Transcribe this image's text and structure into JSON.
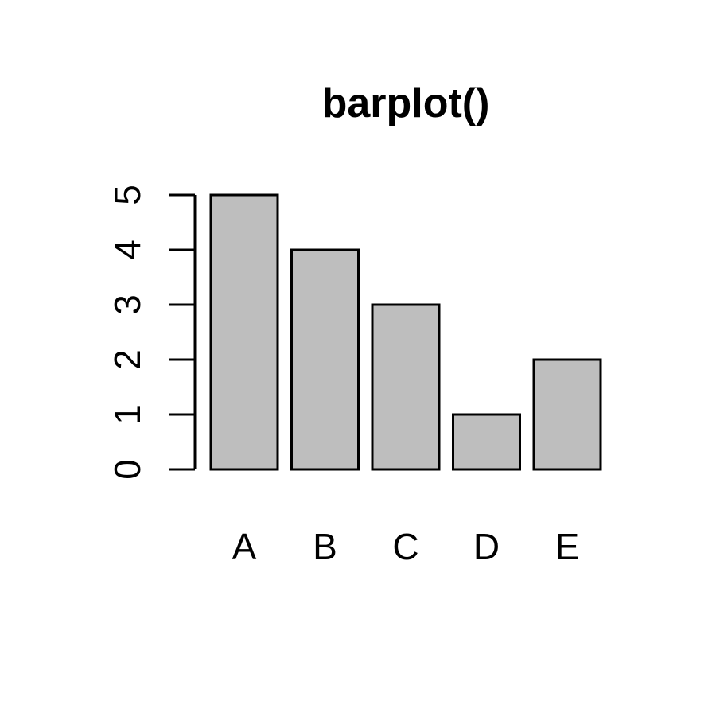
{
  "chart_data": {
    "type": "bar",
    "title": "barplot()",
    "categories": [
      "A",
      "B",
      "C",
      "D",
      "E"
    ],
    "values": [
      5,
      4,
      3,
      1,
      2
    ],
    "yticks": [
      0,
      1,
      2,
      3,
      4,
      5
    ],
    "ylim": [
      0,
      5
    ],
    "xlabel": "",
    "ylabel": "",
    "grid": false,
    "colors": {
      "bar_fill": "#bebebe",
      "bar_border": "#000000",
      "axis": "#000000",
      "background": "#ffffff"
    }
  }
}
